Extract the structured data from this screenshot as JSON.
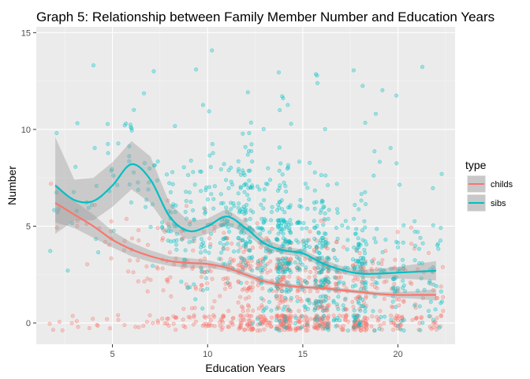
{
  "chart_data": {
    "type": "scatter",
    "title": "Graph 5: Relationship between Family Member Number and Education Years",
    "xlabel": "Education Years",
    "ylabel": "Number",
    "xlim": [
      1.0,
      23.0
    ],
    "ylim": [
      -1.1,
      15.3
    ],
    "xticks": [
      5,
      10,
      15,
      20
    ],
    "yticks": [
      0,
      5,
      10,
      15
    ],
    "grid": true,
    "legend": {
      "title": "type",
      "position": "right"
    },
    "series": [
      {
        "name": "childs",
        "color": "#F8766D",
        "smooth": [
          {
            "x": 2,
            "y": 6.2
          },
          {
            "x": 3,
            "y": 5.6
          },
          {
            "x": 4,
            "y": 5.0
          },
          {
            "x": 5,
            "y": 4.3
          },
          {
            "x": 6,
            "y": 3.8
          },
          {
            "x": 7,
            "y": 3.45
          },
          {
            "x": 8,
            "y": 3.2
          },
          {
            "x": 9,
            "y": 3.1
          },
          {
            "x": 10,
            "y": 3.05
          },
          {
            "x": 11,
            "y": 2.85
          },
          {
            "x": 12,
            "y": 2.5
          },
          {
            "x": 13,
            "y": 2.15
          },
          {
            "x": 14,
            "y": 1.95
          },
          {
            "x": 15,
            "y": 1.85
          },
          {
            "x": 16,
            "y": 1.8
          },
          {
            "x": 17,
            "y": 1.7
          },
          {
            "x": 18,
            "y": 1.6
          },
          {
            "x": 19,
            "y": 1.5
          },
          {
            "x": 20,
            "y": 1.45
          },
          {
            "x": 21,
            "y": 1.45
          },
          {
            "x": 22,
            "y": 1.45
          }
        ],
        "band": [
          {
            "x": 2,
            "lo": 5.2,
            "hi": 7.2
          },
          {
            "x": 3,
            "lo": 4.9,
            "hi": 6.3
          },
          {
            "x": 4,
            "lo": 4.4,
            "hi": 5.6
          },
          {
            "x": 5,
            "lo": 3.9,
            "hi": 4.75
          },
          {
            "x": 6,
            "lo": 3.45,
            "hi": 4.15
          },
          {
            "x": 7,
            "lo": 3.15,
            "hi": 3.75
          },
          {
            "x": 8,
            "lo": 2.95,
            "hi": 3.45
          },
          {
            "x": 9,
            "lo": 2.85,
            "hi": 3.35
          },
          {
            "x": 10,
            "lo": 2.85,
            "hi": 3.25
          },
          {
            "x": 11,
            "lo": 2.7,
            "hi": 3.0
          },
          {
            "x": 12,
            "lo": 2.35,
            "hi": 2.65
          },
          {
            "x": 13,
            "lo": 2.0,
            "hi": 2.3
          },
          {
            "x": 14,
            "lo": 1.85,
            "hi": 2.05
          },
          {
            "x": 15,
            "lo": 1.75,
            "hi": 1.95
          },
          {
            "x": 16,
            "lo": 1.7,
            "hi": 1.9
          },
          {
            "x": 17,
            "lo": 1.6,
            "hi": 1.8
          },
          {
            "x": 18,
            "lo": 1.5,
            "hi": 1.7
          },
          {
            "x": 19,
            "lo": 1.4,
            "hi": 1.6
          },
          {
            "x": 20,
            "lo": 1.3,
            "hi": 1.6
          },
          {
            "x": 21,
            "lo": 1.25,
            "hi": 1.65
          },
          {
            "x": 22,
            "lo": 1.15,
            "hi": 1.75
          }
        ]
      },
      {
        "name": "sibs",
        "color": "#00BFC4",
        "smooth": [
          {
            "x": 2,
            "y": 7.1
          },
          {
            "x": 3,
            "y": 6.35
          },
          {
            "x": 4,
            "y": 6.3
          },
          {
            "x": 5,
            "y": 7.1
          },
          {
            "x": 6,
            "y": 8.2
          },
          {
            "x": 7,
            "y": 7.4
          },
          {
            "x": 8,
            "y": 5.5
          },
          {
            "x": 9,
            "y": 4.75
          },
          {
            "x": 10,
            "y": 5.0
          },
          {
            "x": 11,
            "y": 5.5
          },
          {
            "x": 12,
            "y": 4.9
          },
          {
            "x": 13,
            "y": 4.1
          },
          {
            "x": 14,
            "y": 3.75
          },
          {
            "x": 15,
            "y": 3.6
          },
          {
            "x": 16,
            "y": 3.1
          },
          {
            "x": 17,
            "y": 2.75
          },
          {
            "x": 18,
            "y": 2.55
          },
          {
            "x": 19,
            "y": 2.55
          },
          {
            "x": 20,
            "y": 2.6
          },
          {
            "x": 21,
            "y": 2.65
          },
          {
            "x": 22,
            "y": 2.7
          }
        ],
        "band": [
          {
            "x": 2,
            "lo": 4.6,
            "hi": 9.6
          },
          {
            "x": 3,
            "lo": 5.3,
            "hi": 7.4
          },
          {
            "x": 4,
            "lo": 5.3,
            "hi": 7.5
          },
          {
            "x": 5,
            "lo": 6.0,
            "hi": 8.3
          },
          {
            "x": 6,
            "lo": 6.9,
            "hi": 9.4
          },
          {
            "x": 7,
            "lo": 6.2,
            "hi": 8.6
          },
          {
            "x": 8,
            "lo": 4.8,
            "hi": 6.2
          },
          {
            "x": 9,
            "lo": 4.3,
            "hi": 5.25
          },
          {
            "x": 10,
            "lo": 4.6,
            "hi": 5.4
          },
          {
            "x": 11,
            "lo": 5.1,
            "hi": 5.9
          },
          {
            "x": 12,
            "lo": 4.6,
            "hi": 5.2
          },
          {
            "x": 13,
            "lo": 3.85,
            "hi": 4.35
          },
          {
            "x": 14,
            "lo": 3.55,
            "hi": 3.95
          },
          {
            "x": 15,
            "lo": 3.4,
            "hi": 3.8
          },
          {
            "x": 16,
            "lo": 2.9,
            "hi": 3.3
          },
          {
            "x": 17,
            "lo": 2.55,
            "hi": 2.95
          },
          {
            "x": 18,
            "lo": 2.35,
            "hi": 2.75
          },
          {
            "x": 19,
            "lo": 2.3,
            "hi": 2.8
          },
          {
            "x": 20,
            "lo": 2.3,
            "hi": 2.9
          },
          {
            "x": 21,
            "lo": 2.25,
            "hi": 3.05
          },
          {
            "x": 22,
            "lo": 2.2,
            "hi": 3.2
          }
        ]
      }
    ]
  }
}
